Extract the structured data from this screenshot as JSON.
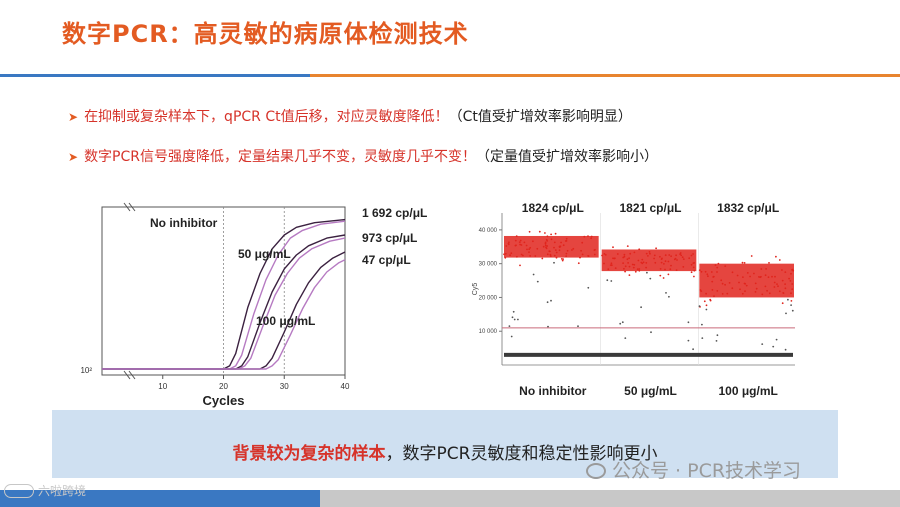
{
  "slide": {
    "title": "数字PCR：高灵敏的病原体检测技术"
  },
  "bullets": [
    {
      "highlight": "在抑制或复杂样本下，qPCR Ct值后移，对应灵敏度降低！",
      "note": "（Ct值受扩增效率影响明显）"
    },
    {
      "highlight": "数字PCR信号强度降低，定量结果几乎不变，灵敏度几乎不变！",
      "note": "（定量值受扩增效率影响小）"
    }
  ],
  "chart_data": [
    {
      "type": "line",
      "title": "",
      "xlabel": "Cycles",
      "ylabel": "",
      "xlim": [
        0,
        40
      ],
      "x_ticks": [
        "10",
        "20",
        "30",
        "40"
      ],
      "y_tick_label": "10²",
      "threshold_lines_at_cycle": [
        20,
        30
      ],
      "series": [
        {
          "name": "No inhibitor",
          "result": "1 692 cp/μL",
          "curves": [
            {
              "x": [
                0,
                20,
                21,
                22,
                24,
                26,
                28,
                30,
                32,
                35,
                40
              ],
              "y": [
                0,
                0,
                0.02,
                0.1,
                0.4,
                0.62,
                0.78,
                0.87,
                0.92,
                0.95,
                0.97
              ]
            },
            {
              "x": [
                0,
                21,
                22,
                23,
                25,
                27,
                29,
                31,
                33,
                36,
                40
              ],
              "y": [
                0,
                0,
                0.02,
                0.09,
                0.36,
                0.58,
                0.74,
                0.85,
                0.9,
                0.94,
                0.96
              ]
            }
          ]
        },
        {
          "name": "50 μg/mL",
          "result": "973 cp/μL",
          "curves": [
            {
              "x": [
                0,
                22,
                23,
                24,
                26,
                28,
                30,
                32,
                34,
                37,
                40
              ],
              "y": [
                0,
                0,
                0.02,
                0.08,
                0.3,
                0.5,
                0.65,
                0.74,
                0.8,
                0.85,
                0.87
              ]
            },
            {
              "x": [
                0,
                22.5,
                23.5,
                24.5,
                26.5,
                28.5,
                30.5,
                32.5,
                34.5,
                37.5,
                40
              ],
              "y": [
                0,
                0,
                0.02,
                0.07,
                0.28,
                0.48,
                0.62,
                0.72,
                0.78,
                0.83,
                0.85
              ]
            }
          ]
        },
        {
          "name": "100 μg/mL",
          "result": "47 cp/μL",
          "curves": [
            {
              "x": [
                0,
                26,
                27,
                28,
                30,
                32,
                34,
                36,
                38,
                40
              ],
              "y": [
                0,
                0,
                0.02,
                0.07,
                0.24,
                0.42,
                0.56,
                0.66,
                0.72,
                0.76
              ]
            },
            {
              "x": [
                0,
                27,
                28,
                29,
                31,
                33,
                35,
                37,
                39,
                40
              ],
              "y": [
                0,
                0,
                0.02,
                0.06,
                0.22,
                0.39,
                0.53,
                0.63,
                0.69,
                0.71
              ]
            }
          ]
        }
      ],
      "colors": {
        "dark": "#3b2140",
        "light": "#b67ac2"
      }
    },
    {
      "type": "scatter",
      "title": "",
      "xlabel": "",
      "ylabel": "Cy5",
      "ylim": [
        0,
        45000
      ],
      "y_ticks": [
        10000,
        20000,
        30000,
        40000
      ],
      "y_tick_labels": [
        "10 000",
        "20 000",
        "30 000",
        "40 000"
      ],
      "threshold": 11000,
      "categories": [
        "No inhibitor",
        "50 μg/mL",
        "100 μg/mL"
      ],
      "concentrations": [
        "1824 cp/μL",
        "1821 cp/μL",
        "1832 cp/μL"
      ],
      "positive_clusters": [
        {
          "center": 35000,
          "spread": 3200
        },
        {
          "center": 31000,
          "spread": 3200
        },
        {
          "center": 25000,
          "spread": 5000
        }
      ],
      "negative_band": 3000,
      "colors": {
        "positive": "#e0251d",
        "negative": "#3a3a3a",
        "threshold": "#c96a7a"
      }
    }
  ],
  "conclusion": {
    "highlight": "背景较为复杂的样本",
    "rest": "，数字PCR灵敏度和稳定性影响更小"
  },
  "watermark": {
    "text": "公众号 · PCR技术学习",
    "corner_logo": "六啦跨境"
  }
}
